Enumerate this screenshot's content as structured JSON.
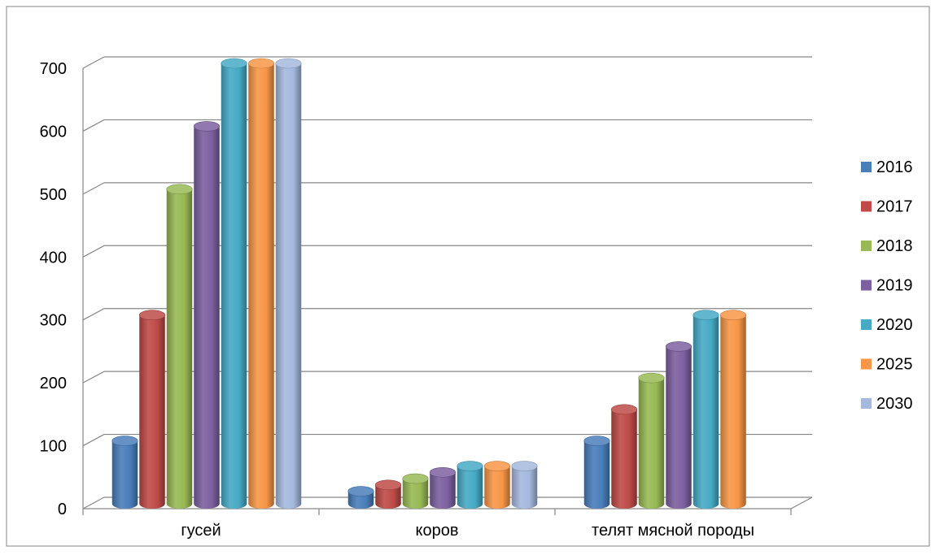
{
  "chart_data": {
    "type": "bar",
    "title": "",
    "xlabel": "",
    "ylabel": "",
    "categories": [
      "гусей",
      "коров",
      "телят мясной породы"
    ],
    "series": [
      {
        "name": "2016",
        "color": "#4a7ebb",
        "values": [
          100,
          20,
          100
        ]
      },
      {
        "name": "2017",
        "color": "#be4b48",
        "values": [
          300,
          30,
          150
        ]
      },
      {
        "name": "2018",
        "color": "#98b954",
        "values": [
          500,
          40,
          200
        ]
      },
      {
        "name": "2019",
        "color": "#7d60a0",
        "values": [
          600,
          50,
          250
        ]
      },
      {
        "name": "2020",
        "color": "#46aac5",
        "values": [
          700,
          60,
          300
        ]
      },
      {
        "name": "2025",
        "color": "#f79646",
        "values": [
          700,
          60,
          300
        ]
      },
      {
        "name": "2030",
        "color": "#a5b9de",
        "values": [
          700,
          60,
          null
        ]
      }
    ],
    "ylim": [
      0,
      700
    ],
    "yticks": [
      0,
      100,
      200,
      300,
      400,
      500,
      600,
      700
    ],
    "grid": true,
    "legend_position": "right"
  }
}
